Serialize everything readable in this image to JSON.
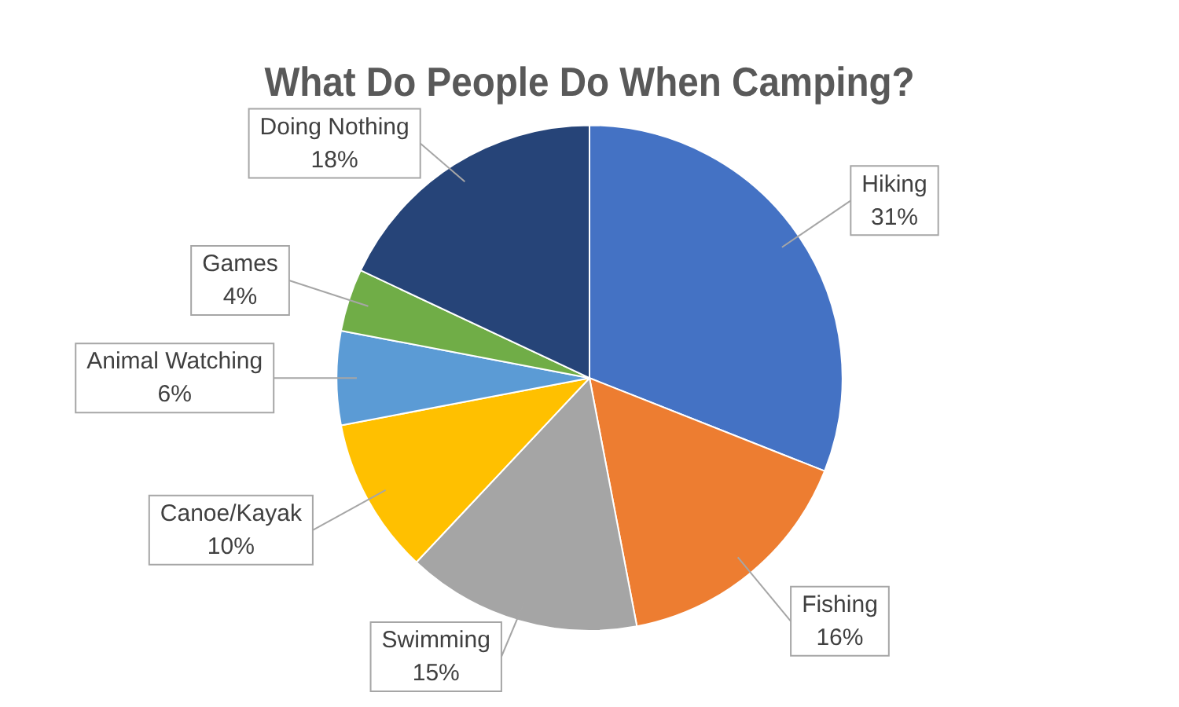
{
  "chart_data": {
    "type": "pie",
    "title": "What Do People Do When Camping?",
    "categories": [
      "Hiking",
      "Fishing",
      "Swimming",
      "Canoe/Kayak",
      "Animal Watching",
      "Games",
      "Doing Nothing"
    ],
    "values": [
      31,
      16,
      15,
      10,
      6,
      4,
      18
    ],
    "value_labels": [
      "31%",
      "16%",
      "15%",
      "10%",
      "6%",
      "4%",
      "18%"
    ],
    "colors": [
      "#4472c4",
      "#ed7d31",
      "#a5a5a5",
      "#ffc000",
      "#5b9bd5",
      "#70ad47",
      "#264478"
    ],
    "legend": false
  }
}
